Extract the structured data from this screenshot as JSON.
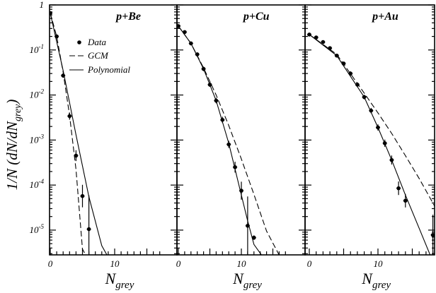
{
  "chart_data": [
    {
      "type": "scatter",
      "panel_label": "p+Be",
      "xlim": [
        0,
        17
      ],
      "ylim_log10": [
        -5.55,
        0.0
      ],
      "y_scale": "log",
      "x_ticks": [
        0,
        10
      ],
      "y_ticks": [
        {
          "label": "1",
          "value": 1
        },
        {
          "label": "10",
          "sup": "-1",
          "value": 0.1
        },
        {
          "label": "10",
          "sup": "-2",
          "value": 0.01
        },
        {
          "label": "10",
          "sup": "-3",
          "value": 0.001
        },
        {
          "label": "10",
          "sup": "-4",
          "value": 0.0001
        },
        {
          "label": "10",
          "sup": "-5",
          "value": 1e-05
        }
      ],
      "ylabel_main": "1/N (dN/dN",
      "ylabel_sub": "grey",
      "ylabel_end": ")",
      "series": [
        {
          "name": "Data",
          "kind": "points",
          "x": [
            0,
            1,
            2,
            3,
            4,
            5,
            6
          ],
          "y": [
            0.66,
            0.2,
            0.027,
            0.0034,
            0.00045,
            5.7e-05,
            1.05e-05
          ],
          "err_log10": [
            0.03,
            0.03,
            0.05,
            0.08,
            0.12,
            0.25,
            0.75
          ]
        },
        {
          "name": "GCM",
          "kind": "dashed",
          "x": [
            0,
            1,
            2,
            3,
            4,
            5,
            5.5
          ],
          "y": [
            0.66,
            0.2,
            0.032,
            0.0035,
            0.00022,
            3.8e-06,
            2.8e-06
          ]
        },
        {
          "name": "Polynomial",
          "kind": "solid",
          "x": [
            0,
            2,
            4,
            6,
            8,
            8.8
          ],
          "y": [
            0.66,
            0.035,
            0.0013,
            5.5e-05,
            4.5e-06,
            2.8e-06
          ]
        }
      ]
    },
    {
      "type": "scatter",
      "panel_label": "p+Cu",
      "xlim": [
        0,
        17
      ],
      "ylim_log10": [
        -5.55,
        0.0
      ],
      "y_scale": "log",
      "x_ticks": [
        0,
        10
      ],
      "series": [
        {
          "name": "Data",
          "kind": "points",
          "x": [
            0,
            1,
            2,
            3,
            4,
            5,
            6,
            7,
            8,
            9,
            10,
            11,
            12
          ],
          "y": [
            0.34,
            0.25,
            0.14,
            0.08,
            0.038,
            0.017,
            0.0075,
            0.0028,
            0.0008,
            0.00025,
            7.5e-05,
            1.25e-05,
            6.8e-06
          ],
          "err_log10": [
            0.03,
            0.03,
            0.04,
            0.04,
            0.05,
            0.05,
            0.06,
            0.07,
            0.08,
            0.12,
            0.2,
            0.65,
            0.05
          ]
        },
        {
          "name": "GCM",
          "kind": "dashed",
          "x": [
            0,
            2,
            4,
            6,
            8,
            10,
            12,
            14,
            16
          ],
          "y": [
            0.34,
            0.14,
            0.04,
            0.01,
            0.0021,
            0.00038,
            6.2e-05,
            9.5e-06,
            2.8e-06
          ]
        },
        {
          "name": "Polynomial",
          "kind": "solid",
          "x": [
            0,
            2,
            4,
            6,
            8,
            10,
            11,
            12,
            13.2
          ],
          "y": [
            0.34,
            0.14,
            0.038,
            0.0075,
            0.00085,
            6e-05,
            1.6e-05,
            4.8e-06,
            2.8e-06
          ]
        }
      ]
    },
    {
      "type": "scatter",
      "panel_label": "p+Au",
      "xlim": [
        0,
        20
      ],
      "ylim_log10": [
        -5.55,
        0.0
      ],
      "y_scale": "log",
      "x_ticks": [
        0,
        10
      ],
      "series": [
        {
          "name": "Data",
          "kind": "points",
          "x": [
            0,
            1,
            2,
            3,
            4,
            5,
            6,
            7,
            8,
            9,
            10,
            11,
            12,
            13,
            14,
            18
          ],
          "y": [
            0.22,
            0.19,
            0.15,
            0.11,
            0.075,
            0.05,
            0.03,
            0.017,
            0.009,
            0.0045,
            0.0019,
            0.00085,
            0.00036,
            8.5e-05,
            4.5e-05,
            7.8e-06
          ],
          "err_log10": [
            0.03,
            0.03,
            0.03,
            0.03,
            0.04,
            0.04,
            0.05,
            0.05,
            0.05,
            0.06,
            0.07,
            0.08,
            0.1,
            0.15,
            0.15,
            0.45
          ]
        },
        {
          "name": "GCM",
          "kind": "dashed",
          "x": [
            0,
            4,
            8,
            10,
            12,
            14,
            16,
            18,
            20
          ],
          "y": [
            0.22,
            0.08,
            0.011,
            0.004,
            0.0014,
            0.00045,
            0.00014,
            4e-05,
            1.1e-05
          ]
        },
        {
          "name": "Polynomial",
          "kind": "solid",
          "x": [
            0,
            4,
            8,
            10,
            12,
            14,
            16,
            18,
            19
          ],
          "y": [
            0.22,
            0.075,
            0.009,
            0.0019,
            0.00036,
            6e-05,
            1.1e-05,
            2e-06,
            8e-07
          ]
        }
      ]
    }
  ],
  "legend": {
    "items": [
      {
        "label": "Data",
        "kind": "points"
      },
      {
        "label": "GCM",
        "kind": "dashed"
      },
      {
        "label": "Polynomial",
        "kind": "solid"
      }
    ],
    "placement": "upper-left of first panel"
  },
  "xlabel": {
    "main": "N",
    "sub": "grey"
  }
}
